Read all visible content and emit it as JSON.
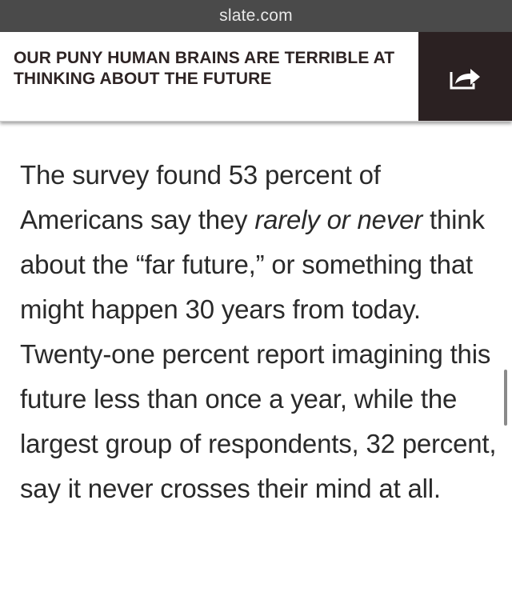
{
  "browser": {
    "url": "slate.com"
  },
  "header": {
    "headline": "OUR PUNY HUMAN BRAINS ARE TERRIBLE AT THINKING ABOUT THE FUTURE",
    "share_icon": "share-arrow-icon"
  },
  "article": {
    "part1": "The survey found 53 percent of Americans say they ",
    "emphasis": "rarely or never",
    "part2": " think about the “far future,” or something that might happen 30 years from today. Twenty-one percent report imagining this future less than once a year, while the largest group of respondents, 32 percent, say it never crosses their mind at all."
  },
  "colors": {
    "url_bar_bg": "#4a4a4a",
    "share_bg": "#2b2122",
    "headline_text": "#2e2424",
    "body_text": "#2a2a2a"
  }
}
